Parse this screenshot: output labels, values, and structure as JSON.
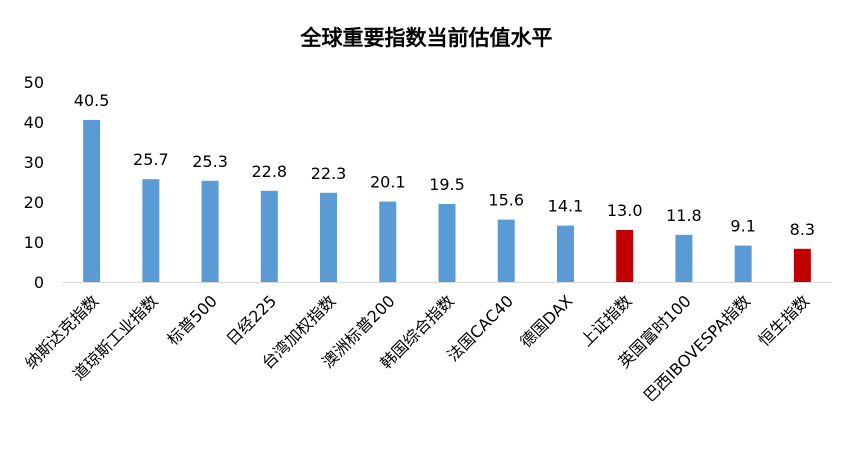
{
  "chart_data": {
    "type": "bar",
    "title": "全球重要指数当前估值水平",
    "xlabel": "",
    "ylabel": "",
    "ylim": [
      0,
      50
    ],
    "yticks": [
      0,
      10,
      20,
      30,
      40,
      50
    ],
    "grid": false,
    "legend": "none",
    "categories": [
      "纳斯达克指数",
      "道琼斯工业指数",
      "标普500",
      "日经225",
      "台湾加权指数",
      "澳洲标普200",
      "韩国综合指数",
      "法国CAC40",
      "德国DAX",
      "上证指数",
      "英国富时100",
      "巴西IBOVESPA指数",
      "恒生指数"
    ],
    "values": [
      40.5,
      25.7,
      25.3,
      22.8,
      22.3,
      20.1,
      19.5,
      15.6,
      14.1,
      13.0,
      11.8,
      9.1,
      8.3
    ],
    "data_labels": [
      "40.5",
      "25.7",
      "25.3",
      "22.8",
      "22.3",
      "20.1",
      "19.5",
      "15.6",
      "14.1",
      "13.0",
      "11.8",
      "9.1",
      "8.3"
    ],
    "colors": [
      "#5B9BD5",
      "#5B9BD5",
      "#5B9BD5",
      "#5B9BD5",
      "#5B9BD5",
      "#5B9BD5",
      "#5B9BD5",
      "#5B9BD5",
      "#5B9BD5",
      "#C00000",
      "#5B9BD5",
      "#5B9BD5",
      "#C00000"
    ]
  }
}
